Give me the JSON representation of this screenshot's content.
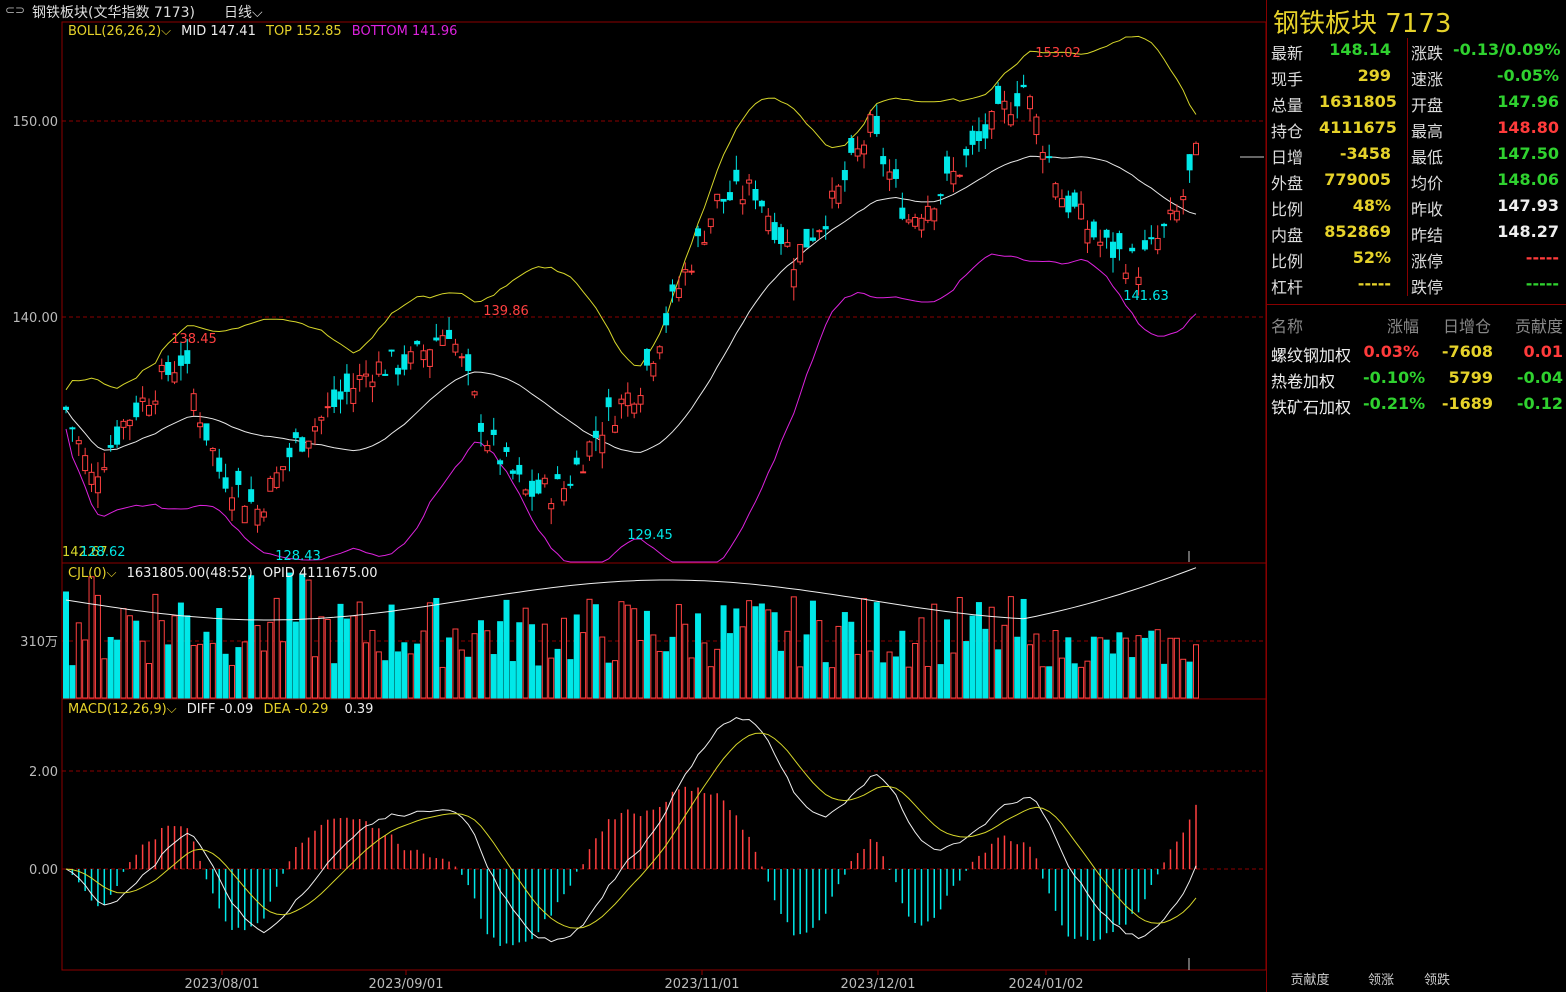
{
  "header": {
    "link_icon": "⊂⊃",
    "title": "钢铁板块(文华指数  7173)",
    "period": "日线",
    "period_icon": "chevron-down-icon"
  },
  "indicators": {
    "boll": {
      "name": "BOLL(26,26,2)",
      "mid": "MID 147.41",
      "top": "TOP 152.85",
      "bottom": "BOTTOM 141.96"
    },
    "cjl": {
      "name": "CJL(0)",
      "vol": "1631805.00(48:52)",
      "opid": "OPID 4111675.00"
    },
    "macd": {
      "name": "MACD(12,26,9)",
      "diff": "DIFF -0.09",
      "dea": "DEA -0.29",
      "macd": "0.39"
    }
  },
  "axes": {
    "price_ticks": [
      "150.00",
      "140.00"
    ],
    "vol_tick": "310万",
    "macd_ticks": [
      "2.00",
      "0.00"
    ],
    "dates": [
      "2023/08/01",
      "2023/09/01",
      "2023/11/01",
      "2023/12/01",
      "2024/01/02"
    ],
    "annotations": {
      "high": "153.02",
      "h1": "138.45",
      "h2": "139.86",
      "low1": "128.43",
      "low2": "129.45",
      "low3": "141.63",
      "left_label": "142.67",
      "left_label2": "128.62"
    }
  },
  "colors": {
    "up": "#ff4040",
    "down": "#00e8e8",
    "mid": "#e8e8e8",
    "top": "#d6d62a",
    "bottom": "#dd22dd",
    "grid": "#8b0000"
  },
  "sidebar": {
    "name": "钢铁板块  7173",
    "quote": [
      {
        "l1": "最新",
        "v1": "148.14",
        "c1": "green",
        "l2": "涨跌",
        "v2": "-0.13/0.09%",
        "c2": "green"
      },
      {
        "l1": "现手",
        "v1": "299",
        "c1": "yellow",
        "l2": "速涨",
        "v2": "-0.05%",
        "c2": "green"
      },
      {
        "l1": "总量",
        "v1": "1631805",
        "c1": "yellow",
        "l2": "开盘",
        "v2": "147.96",
        "c2": "green"
      },
      {
        "l1": "持仓",
        "v1": "4111675",
        "c1": "yellow",
        "l2": "最高",
        "v2": "148.80",
        "c2": "red"
      },
      {
        "l1": "日增",
        "v1": "-3458",
        "c1": "yellow",
        "l2": "最低",
        "v2": "147.50",
        "c2": "green"
      },
      {
        "l1": "外盘",
        "v1": "779005",
        "c1": "yellow",
        "l2": "均价",
        "v2": "148.06",
        "c2": "green"
      },
      {
        "l1": "比例",
        "v1": "48%",
        "c1": "yellow",
        "l2": "昨收",
        "v2": "147.93",
        "c2": "white"
      },
      {
        "l1": "内盘",
        "v1": "852869",
        "c1": "yellow",
        "l2": "昨结",
        "v2": "148.27",
        "c2": "white"
      },
      {
        "l1": "比例",
        "v1": "52%",
        "c1": "yellow",
        "l2": "涨停",
        "v2": "-----",
        "c2": "red"
      },
      {
        "l1": "杠杆",
        "v1": "-----",
        "c1": "yellow",
        "l2": "跌停",
        "v2": "-----",
        "c2": "green"
      }
    ],
    "comp_headers": [
      "名称",
      "涨幅",
      "日增仓",
      "贡献度"
    ],
    "components": [
      {
        "name": "螺纹钢加权",
        "chg": "0.03%",
        "chg_c": "red",
        "oi": "-7608",
        "ctb": "0.01",
        "ctb_c": "red"
      },
      {
        "name": "热卷加权",
        "chg": "-0.10%",
        "chg_c": "green",
        "oi": "5799",
        "ctb": "-0.04",
        "ctb_c": "green"
      },
      {
        "name": "铁矿石加权",
        "chg": "-0.21%",
        "chg_c": "green",
        "oi": "-1689",
        "ctb": "-0.12",
        "ctb_c": "green"
      }
    ],
    "tabs": [
      "贡献度",
      "领涨",
      "领跌"
    ]
  }
}
